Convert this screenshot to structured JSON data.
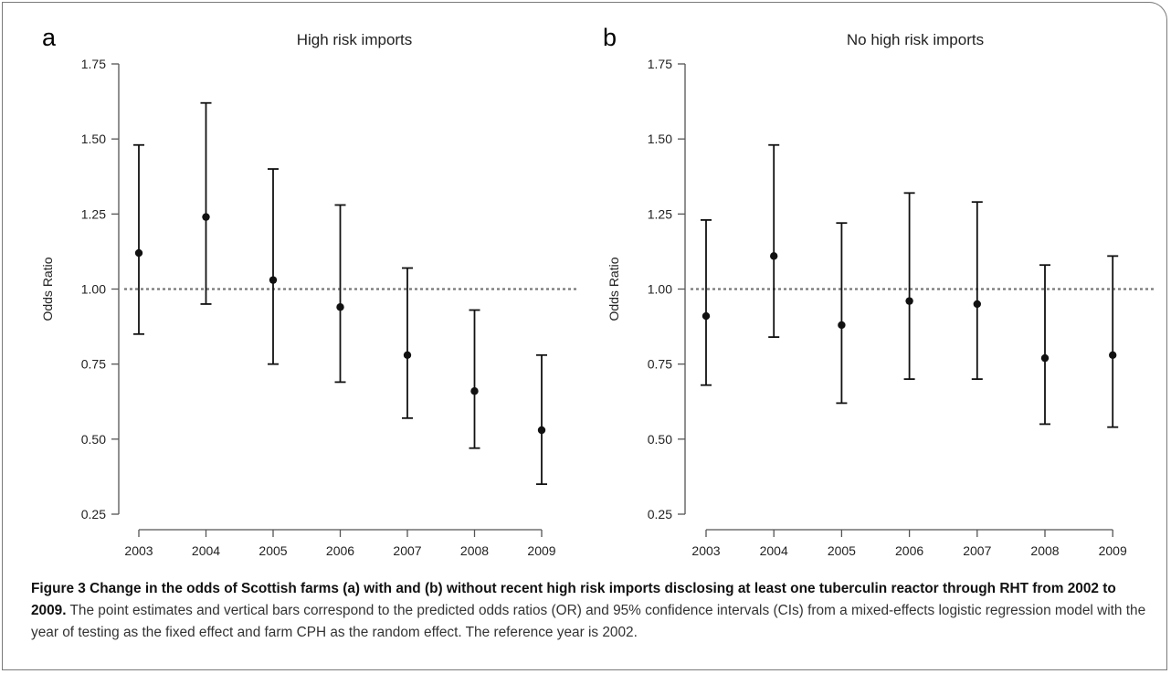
{
  "chart_data": [
    {
      "type": "scatter",
      "panel_label": "a",
      "title": "High risk imports",
      "xlabel": "",
      "ylabel": "Odds Ratio",
      "x": [
        "2003",
        "2004",
        "2005",
        "2006",
        "2007",
        "2008",
        "2009"
      ],
      "ylim": [
        0.25,
        1.75
      ],
      "yticks": [
        "0.25",
        "0.50",
        "0.75",
        "1.00",
        "1.25",
        "1.50",
        "1.75"
      ],
      "reference_line": 1.0,
      "grid": false,
      "series": [
        {
          "estimate": [
            1.12,
            1.24,
            1.03,
            0.94,
            0.78,
            0.66,
            0.53
          ],
          "lower": [
            0.85,
            0.95,
            0.75,
            0.69,
            0.57,
            0.47,
            0.35
          ],
          "upper": [
            1.48,
            1.62,
            1.4,
            1.28,
            1.07,
            0.93,
            0.78
          ]
        }
      ]
    },
    {
      "type": "scatter",
      "panel_label": "b",
      "title": "No high risk imports",
      "xlabel": "",
      "ylabel": "Odds Ratio",
      "x": [
        "2003",
        "2004",
        "2005",
        "2006",
        "2007",
        "2008",
        "2009"
      ],
      "ylim": [
        0.25,
        1.75
      ],
      "yticks": [
        "0.25",
        "0.50",
        "0.75",
        "1.00",
        "1.25",
        "1.50",
        "1.75"
      ],
      "reference_line": 1.0,
      "grid": false,
      "series": [
        {
          "estimate": [
            0.91,
            1.11,
            0.88,
            0.96,
            0.95,
            0.77,
            0.78
          ],
          "lower": [
            0.68,
            0.84,
            0.62,
            0.7,
            0.7,
            0.55,
            0.54
          ],
          "upper": [
            1.23,
            1.48,
            1.22,
            1.32,
            1.29,
            1.08,
            1.11
          ]
        }
      ]
    }
  ],
  "caption": {
    "bold": "Figure 3 Change in the odds of Scottish farms (a) with and (b) without recent high risk imports disclosing at least one tuberculin reactor through RHT from 2002 to 2009.",
    "text": " The point estimates and vertical bars correspond to the predicted odds ratios (OR) and 95% confidence intervals (CIs) from a mixed-effects logistic regression model with the year of testing as the fixed effect and farm CPH as the random effect. The reference year is 2002."
  },
  "colors": {
    "marks": "#111111",
    "axis": "#555555",
    "reference": "#777777",
    "caption_text": "#333333"
  }
}
